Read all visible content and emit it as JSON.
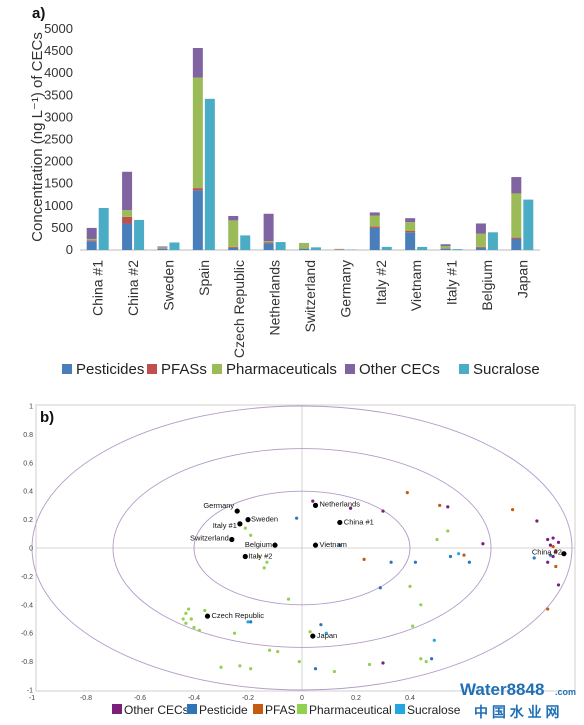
{
  "chart_data": [
    {
      "type": "bar",
      "stacked": true,
      "panel_label": "a)",
      "ylabel": "Concentration (ng L⁻¹) of CECs",
      "ylim": [
        0,
        5000
      ],
      "yticks": [
        0,
        500,
        1000,
        1500,
        2000,
        2500,
        3000,
        3500,
        4000,
        4500,
        5000
      ],
      "categories": [
        "China #1",
        "China #2",
        "Sweden",
        "Spain",
        "Czech Republic",
        "Netherlands",
        "Switzerland",
        "Germany",
        "Italy #2",
        "Vietnam",
        "Italy #1",
        "Belgium",
        "Japan"
      ],
      "series": [
        {
          "name": "Pesticides",
          "color": "#4a7ebb",
          "values": [
            200,
            600,
            30,
            1350,
            50,
            150,
            30,
            5,
            500,
            400,
            30,
            50,
            250
          ]
        },
        {
          "name": "PFASs",
          "color": "#c0504d",
          "values": [
            20,
            150,
            10,
            50,
            20,
            20,
            5,
            5,
            30,
            30,
            10,
            20,
            30
          ]
        },
        {
          "name": "Pharmaceuticals",
          "color": "#9bbb59",
          "values": [
            30,
            150,
            20,
            2500,
            600,
            30,
            120,
            10,
            250,
            200,
            50,
            300,
            1000
          ]
        },
        {
          "name": "Other CECs",
          "color": "#8064a2",
          "values": [
            250,
            870,
            20,
            670,
            100,
            620,
            5,
            5,
            70,
            90,
            40,
            230,
            370
          ]
        }
      ],
      "sucralose": {
        "name": "Sucralose",
        "color": "#4bacc6",
        "values": [
          950,
          680,
          170,
          3420,
          330,
          180,
          60,
          10,
          70,
          70,
          20,
          400,
          1140
        ]
      },
      "legend": [
        "Pesticides",
        "PFASs",
        "Pharmaceuticals",
        "Other CECs",
        "Sucralose"
      ],
      "legend_position": "bottom"
    },
    {
      "type": "scatter",
      "panel_label": "b)",
      "xlim": [
        -1,
        1
      ],
      "ylim": [
        -1,
        1
      ],
      "xticks": [
        -1,
        -0.8,
        -0.6,
        -0.4,
        -0.2,
        0,
        0.2,
        0.4
      ],
      "yticks": [
        -1,
        -0.8,
        -0.6,
        -0.4,
        -0.2,
        0,
        0.2,
        0.4,
        0.6,
        0.8,
        1
      ],
      "circles": [
        0.4,
        0.7,
        1.0
      ],
      "samples": [
        {
          "label": "Germany",
          "x": -0.24,
          "y": 0.26
        },
        {
          "label": "Italy #1",
          "x": -0.23,
          "y": 0.17
        },
        {
          "label": "Sweden",
          "x": -0.2,
          "y": 0.2
        },
        {
          "label": "Netherlands",
          "x": 0.05,
          "y": 0.3
        },
        {
          "label": "China #1",
          "x": 0.14,
          "y": 0.18
        },
        {
          "label": "Switzerland",
          "x": -0.26,
          "y": 0.06
        },
        {
          "label": "Belgium",
          "x": -0.1,
          "y": 0.02
        },
        {
          "label": "Vietnam",
          "x": 0.05,
          "y": 0.02
        },
        {
          "label": "Italy #2",
          "x": -0.21,
          "y": -0.06
        },
        {
          "label": "Czech Republic",
          "x": -0.35,
          "y": -0.48
        },
        {
          "label": "Japan",
          "x": 0.04,
          "y": -0.62
        },
        {
          "label": "China #2",
          "x": 0.97,
          "y": -0.04
        }
      ],
      "variables": [
        {
          "group": "Other CECs",
          "color": "#7b1f7b",
          "points": [
            [
              0.04,
              0.33
            ],
            [
              0.18,
              0.28
            ],
            [
              0.3,
              0.26
            ],
            [
              0.54,
              0.29
            ],
            [
              0.67,
              0.03
            ],
            [
              0.87,
              0.19
            ],
            [
              0.91,
              0.06
            ],
            [
              0.92,
              0.02
            ],
            [
              0.93,
              0.07
            ],
            [
              0.91,
              -0.1
            ],
            [
              0.93,
              -0.06
            ],
            [
              0.94,
              -0.02
            ],
            [
              0.95,
              0.04
            ],
            [
              0.95,
              -0.26
            ],
            [
              0.3,
              -0.81
            ]
          ]
        },
        {
          "group": "Pesticide",
          "color": "#2e75b6",
          "points": [
            [
              -0.02,
              0.21
            ],
            [
              0.14,
              0.02
            ],
            [
              0.29,
              -0.28
            ],
            [
              0.33,
              -0.1
            ],
            [
              0.42,
              -0.1
            ],
            [
              0.55,
              -0.06
            ],
            [
              0.62,
              -0.1
            ],
            [
              0.86,
              -0.07
            ],
            [
              0.92,
              -0.05
            ],
            [
              0.07,
              -0.54
            ],
            [
              0.05,
              -0.85
            ],
            [
              -0.19,
              -0.52
            ],
            [
              0.48,
              -0.78
            ]
          ]
        },
        {
          "group": "PFAS",
          "color": "#c55a11",
          "points": [
            [
              0.39,
              0.39
            ],
            [
              0.51,
              0.3
            ],
            [
              0.78,
              0.27
            ],
            [
              0.93,
              0.01
            ],
            [
              0.94,
              -0.03
            ],
            [
              0.94,
              -0.13
            ],
            [
              0.23,
              -0.08
            ],
            [
              0.6,
              -0.05
            ],
            [
              0.91,
              -0.43
            ]
          ]
        },
        {
          "group": "Pharmaceutical",
          "color": "#92d050",
          "points": [
            [
              -0.42,
              -0.43
            ],
            [
              -0.43,
              -0.46
            ],
            [
              -0.44,
              -0.5
            ],
            [
              -0.41,
              -0.5
            ],
            [
              -0.43,
              -0.53
            ],
            [
              -0.4,
              -0.56
            ],
            [
              -0.38,
              -0.58
            ],
            [
              -0.36,
              -0.44
            ],
            [
              -0.25,
              -0.6
            ],
            [
              -0.16,
              -0.06
            ],
            [
              -0.13,
              -0.1
            ],
            [
              -0.14,
              -0.14
            ],
            [
              -0.21,
              0.14
            ],
            [
              -0.19,
              0.09
            ],
            [
              0.54,
              0.12
            ],
            [
              0.5,
              0.06
            ],
            [
              0.4,
              -0.27
            ],
            [
              0.44,
              -0.4
            ],
            [
              0.41,
              -0.55
            ],
            [
              -0.05,
              -0.36
            ],
            [
              0.03,
              -0.59
            ],
            [
              -0.12,
              -0.72
            ],
            [
              -0.09,
              -0.73
            ],
            [
              -0.01,
              -0.8
            ],
            [
              0.12,
              -0.87
            ],
            [
              -0.23,
              -0.83
            ],
            [
              -0.19,
              -0.85
            ],
            [
              -0.3,
              -0.84
            ],
            [
              0.25,
              -0.82
            ],
            [
              0.44,
              -0.78
            ],
            [
              0.46,
              -0.8
            ]
          ]
        },
        {
          "group": "Sucralose",
          "color": "#22a7e0",
          "points": [
            [
              0.58,
              -0.04
            ],
            [
              0.49,
              -0.65
            ],
            [
              0.09,
              -0.6
            ],
            [
              -0.2,
              -0.52
            ]
          ]
        }
      ],
      "legend": [
        "Other CECs",
        "Pesticide",
        "PFAS",
        "Pharmaceutical",
        "Sucralose"
      ],
      "legend_position": "bottom"
    }
  ],
  "watermark": {
    "brand": "Water8848",
    "suffix": ".com",
    "subtitle": "中 国 水 业 网"
  }
}
